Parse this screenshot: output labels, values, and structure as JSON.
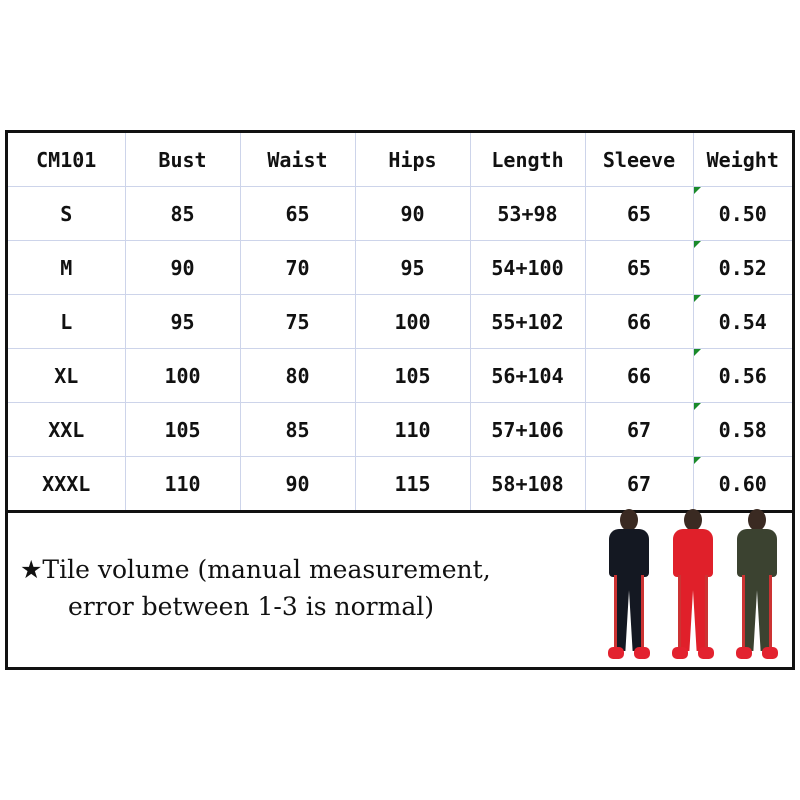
{
  "table": {
    "headers": [
      "CM101",
      "Bust",
      "Waist",
      "Hips",
      "Length",
      "Sleeve",
      "Weight"
    ],
    "rows": [
      [
        "S",
        "85",
        "65",
        "90",
        "53+98",
        "65",
        "0.50"
      ],
      [
        "M",
        "90",
        "70",
        "95",
        "54+100",
        "65",
        "0.52"
      ],
      [
        "L",
        "95",
        "75",
        "100",
        "55+102",
        "66",
        "0.54"
      ],
      [
        "XL",
        "100",
        "80",
        "105",
        "56+104",
        "66",
        "0.56"
      ],
      [
        "XXL",
        "105",
        "85",
        "110",
        "57+106",
        "67",
        "0.58"
      ],
      [
        "XXXL",
        "110",
        "90",
        "115",
        "58+108",
        "67",
        "0.60"
      ]
    ]
  },
  "note": {
    "icon": "star-icon",
    "star": "★",
    "line1": "Tile volume (manual measurement,",
    "line2": "error between 1-3 is normal)"
  },
  "photo": {
    "colors": [
      "#141822",
      "#e0202a",
      "#3b4230"
    ]
  }
}
